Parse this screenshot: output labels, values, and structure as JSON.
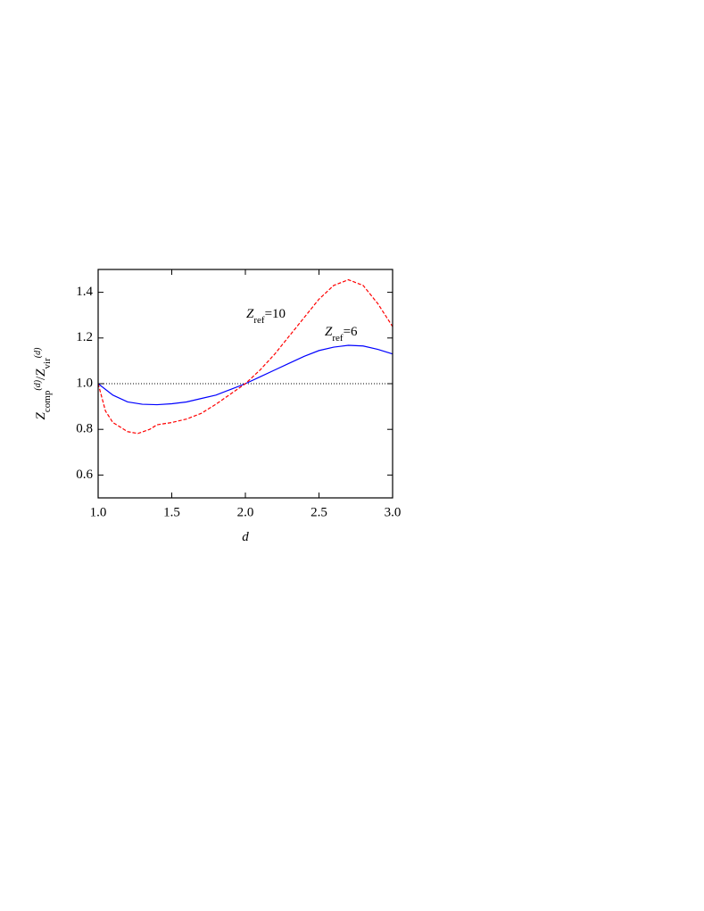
{
  "chart_data": {
    "type": "line",
    "xlabel": "d",
    "ylabel_parts": [
      {
        "text": "Z",
        "shift": "base"
      },
      {
        "text": "comp",
        "shift": "sub"
      },
      {
        "text": "(d)",
        "shift": "sup"
      },
      {
        "text": "/",
        "shift": "base"
      },
      {
        "text": "Z",
        "shift": "base"
      },
      {
        "text": "vir",
        "shift": "sub"
      },
      {
        "text": "(d)",
        "shift": "sup"
      }
    ],
    "annotations": [
      [
        {
          "text": "Z",
          "shift": "base"
        },
        {
          "text": "ref",
          "shift": "sub"
        },
        {
          "text": "=10",
          "shift": "base"
        }
      ],
      [
        {
          "text": "Z",
          "shift": "base"
        },
        {
          "text": "ref",
          "shift": "sub"
        },
        {
          "text": "=6",
          "shift": "base"
        }
      ]
    ],
    "xlim": [
      1,
      3
    ],
    "ylim": [
      0.5,
      1.5
    ],
    "xticks": [
      {
        "value": 1,
        "label": "1.0"
      },
      1.5,
      {
        "value": 2,
        "label": "2.0"
      },
      2.5,
      {
        "value": 3,
        "label": "3.0"
      }
    ],
    "yticks": [
      0.6,
      0.8,
      {
        "value": 1,
        "label": "1.0"
      },
      1.2,
      1.4
    ],
    "reference_line": 1,
    "series": [
      {
        "color": "#0000ff",
        "dash": false,
        "x": [
          1.0,
          1.1,
          1.2,
          1.3,
          1.4,
          1.5,
          1.6,
          1.7,
          1.8,
          1.9,
          2.0,
          2.1,
          2.2,
          2.3,
          2.4,
          2.5,
          2.6,
          2.7,
          2.8,
          2.9,
          3.0
        ],
        "values": [
          1.0,
          0.95,
          0.92,
          0.91,
          0.908,
          0.912,
          0.92,
          0.935,
          0.95,
          0.975,
          1.0,
          1.03,
          1.06,
          1.09,
          1.12,
          1.145,
          1.16,
          1.168,
          1.165,
          1.15,
          1.13
        ]
      },
      {
        "color": "#ff0000",
        "dash": true,
        "x": [
          1.0,
          1.05,
          1.1,
          1.2,
          1.27,
          1.35,
          1.4,
          1.5,
          1.6,
          1.7,
          1.8,
          1.9,
          2.0,
          2.1,
          2.2,
          2.3,
          2.4,
          2.5,
          2.6,
          2.7,
          2.8,
          2.9,
          3.0
        ],
        "values": [
          1.0,
          0.88,
          0.83,
          0.79,
          0.782,
          0.8,
          0.82,
          0.83,
          0.845,
          0.87,
          0.91,
          0.955,
          1.0,
          1.06,
          1.13,
          1.21,
          1.29,
          1.37,
          1.43,
          1.455,
          1.43,
          1.35,
          1.25
        ]
      }
    ]
  }
}
